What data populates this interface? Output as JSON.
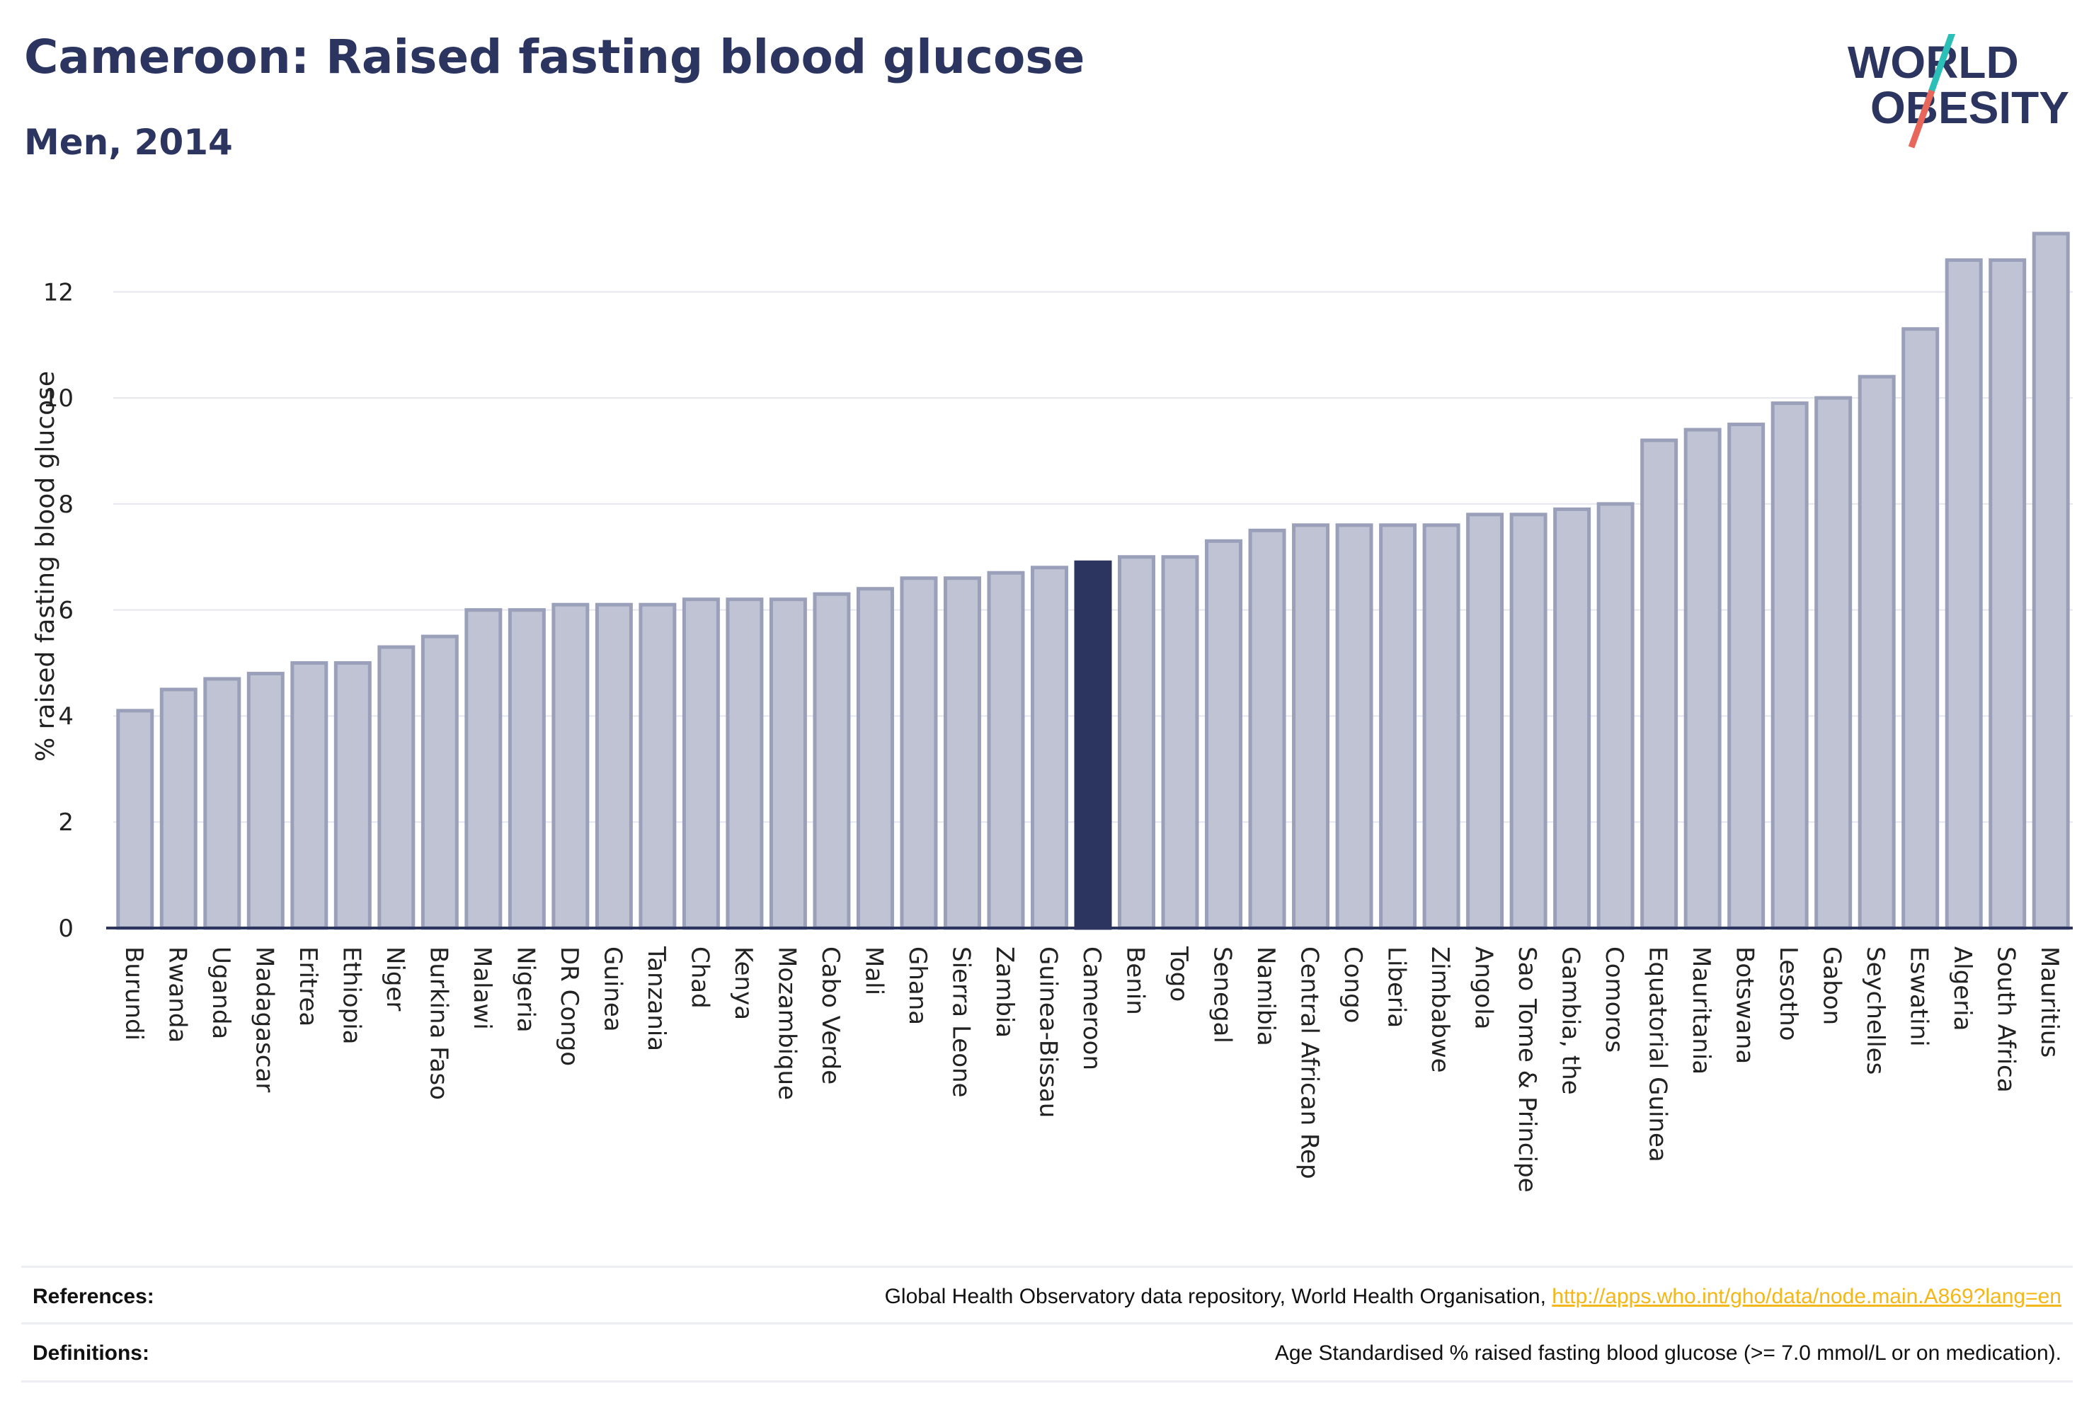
{
  "header": {
    "title": "Cameroon: Raised fasting blood glucose",
    "subtitle": "Men, 2014"
  },
  "logo": {
    "line1": "WORLD",
    "line2": "OBESITY",
    "slash_color_top": "#2bbfb8",
    "slash_color_bottom": "#e8665a"
  },
  "colors": {
    "bar": "#bfc3d3",
    "bar_edge": "#9aa0b9",
    "highlight": "#2c3560",
    "grid": "#e6e7ee",
    "axis": "#2c3560",
    "text": "#222222"
  },
  "chart_data": {
    "type": "bar",
    "title": "Cameroon: Raised fasting blood glucose",
    "subtitle": "Men, 2014",
    "xlabel": "",
    "ylabel": "% raised fasting blood glucose",
    "ylim": [
      0,
      13.5
    ],
    "yticks": [
      0,
      2,
      4,
      6,
      8,
      10,
      12
    ],
    "grid": true,
    "highlight": "Cameroon",
    "categories": [
      "Burundi",
      "Rwanda",
      "Uganda",
      "Madagascar",
      "Eritrea",
      "Ethiopia",
      "Niger",
      "Burkina Faso",
      "Malawi",
      "Nigeria",
      "DR Congo",
      "Guinea",
      "Tanzania",
      "Chad",
      "Kenya",
      "Mozambique",
      "Cabo Verde",
      "Mali",
      "Ghana",
      "Sierra Leone",
      "Zambia",
      "Guinea-Bissau",
      "Cameroon",
      "Benin",
      "Togo",
      "Senegal",
      "Namibia",
      "Central African Rep",
      "Congo",
      "Liberia",
      "Zimbabwe",
      "Angola",
      "Sao Tome & Principe",
      "Gambia, the",
      "Comoros",
      "Equatorial Guinea",
      "Mauritania",
      "Botswana",
      "Lesotho",
      "Gabon",
      "Seychelles",
      "Eswatini",
      "Algeria",
      "South Africa",
      "Mauritius"
    ],
    "values": [
      4.1,
      4.5,
      4.7,
      4.8,
      5.0,
      5.0,
      5.3,
      5.5,
      6.0,
      6.0,
      6.1,
      6.1,
      6.1,
      6.2,
      6.2,
      6.2,
      6.3,
      6.4,
      6.6,
      6.6,
      6.7,
      6.8,
      6.9,
      7.0,
      7.0,
      7.3,
      7.5,
      7.6,
      7.6,
      7.6,
      7.6,
      7.8,
      7.8,
      7.9,
      8.0,
      9.2,
      9.4,
      9.5,
      9.9,
      10.0,
      10.4,
      11.3,
      12.6,
      12.6,
      13.1
    ]
  },
  "footer": {
    "references_label": "References:",
    "references_text": "Global Health Observatory data repository, World Health Organisation, ",
    "references_link": "http://apps.who.int/gho/data/node.main.A869?lang=en",
    "definitions_label": "Definitions:",
    "definitions_text": "Age Standardised % raised fasting blood glucose (>= 7.0 mmol/L or on medication)."
  }
}
